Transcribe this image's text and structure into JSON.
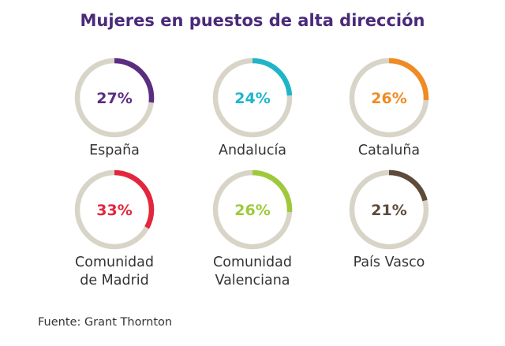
{
  "title": "Mujeres en puestos de alta dirección",
  "source": "Fuente: Grant Thornton",
  "track_color": "#d8d4c7",
  "chart_data": {
    "type": "pie",
    "title": "Mujeres en puestos de alta dirección",
    "unit": "%",
    "items": [
      {
        "label": "España",
        "label_lines": [
          "España"
        ],
        "value": 27,
        "display": "27%",
        "color": "#5b2d82"
      },
      {
        "label": "Andalucía",
        "label_lines": [
          "Andalucía"
        ],
        "value": 24,
        "display": "24%",
        "color": "#1fb5c9"
      },
      {
        "label": "Cataluña",
        "label_lines": [
          "Cataluña"
        ],
        "value": 26,
        "display": "26%",
        "color": "#f08b24"
      },
      {
        "label": "Comunidad de Madrid",
        "label_lines": [
          "Comunidad",
          "de Madrid"
        ],
        "value": 33,
        "display": "33%",
        "color": "#e3263d"
      },
      {
        "label": "Comunidad Valenciana",
        "label_lines": [
          "Comunidad",
          "Valenciana"
        ],
        "value": 26,
        "display": "26%",
        "color": "#9ec93a"
      },
      {
        "label": "País Vasco",
        "label_lines": [
          "País Vasco"
        ],
        "value": 21,
        "display": "21%",
        "color": "#5e4b3c"
      }
    ]
  }
}
